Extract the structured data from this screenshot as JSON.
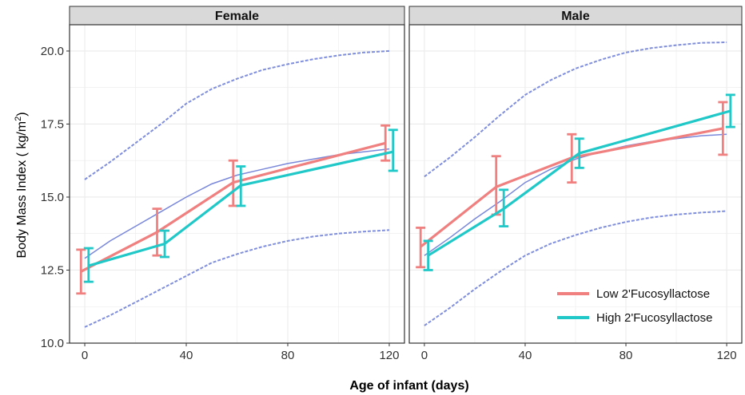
{
  "figure": {
    "xlabel": "Age of infant (days)",
    "ylabel_main": "Body Mass Index ( kg/m",
    "ylabel_sup": "2",
    "ylabel_end": ")",
    "legend": [
      {
        "label": "Low 2'Fucosyllactose",
        "color": "#F08080"
      },
      {
        "label": "High 2'Fucosyllactose",
        "color": "#20C8C8"
      }
    ]
  },
  "chart_data": {
    "type": "line",
    "xlim": [
      -6,
      126
    ],
    "ylim": [
      10,
      20.9
    ],
    "x_ticks": [
      0,
      40,
      80,
      120
    ],
    "y_ticks": [
      10,
      12.5,
      15,
      17.5,
      20
    ],
    "y_tick_labels": [
      "10.0",
      "12.5",
      "15.0",
      "17.5",
      "20.0"
    ],
    "grid": true,
    "colors": {
      "low": "#F08080",
      "high": "#20C8C8",
      "reference": "#6A7BD6",
      "panel_border": "#333333",
      "strip_fill": "#D9D9D9",
      "grid": "#EBEBEB"
    },
    "panels": [
      {
        "name": "Female",
        "x": [
          0,
          30,
          60,
          120
        ],
        "series": [
          {
            "name": "Low 2'Fucosyllactose",
            "values": [
              12.45,
              13.8,
              15.5,
              16.85
            ],
            "lower": [
              11.7,
              13.0,
              14.7,
              16.25
            ],
            "upper": [
              13.2,
              14.6,
              16.25,
              17.45
            ]
          },
          {
            "name": "High 2'Fucosyllactose",
            "values": [
              12.65,
              13.4,
              15.4,
              16.55
            ],
            "lower": [
              12.1,
              12.95,
              14.7,
              15.9
            ],
            "upper": [
              13.25,
              13.85,
              16.05,
              17.3
            ]
          }
        ],
        "reference_x": [
          0,
          10,
          20,
          30,
          40,
          50,
          60,
          70,
          80,
          90,
          100,
          110,
          120
        ],
        "reference_median": [
          12.9,
          13.5,
          14.0,
          14.5,
          15.0,
          15.45,
          15.75,
          15.95,
          16.15,
          16.3,
          16.45,
          16.55,
          16.65
        ],
        "reference_upper": [
          15.6,
          16.2,
          16.85,
          17.5,
          18.2,
          18.7,
          19.05,
          19.35,
          19.55,
          19.72,
          19.85,
          19.95,
          20.0
        ],
        "reference_lower": [
          10.55,
          10.95,
          11.4,
          11.85,
          12.3,
          12.75,
          13.05,
          13.3,
          13.5,
          13.65,
          13.75,
          13.82,
          13.87
        ]
      },
      {
        "name": "Male",
        "x": [
          0,
          30,
          60,
          120
        ],
        "series": [
          {
            "name": "Low 2'Fucosyllactose",
            "values": [
              13.3,
              15.35,
              16.35,
              17.35
            ],
            "lower": [
              12.6,
              14.4,
              15.5,
              16.45
            ],
            "upper": [
              13.95,
              16.4,
              17.15,
              18.25
            ]
          },
          {
            "name": "High 2'Fucosyllactose",
            "values": [
              13.0,
              14.6,
              16.5,
              17.95
            ],
            "lower": [
              12.5,
              14.0,
              16.0,
              17.4
            ],
            "upper": [
              13.5,
              15.25,
              17.0,
              18.5
            ]
          }
        ],
        "reference_x": [
          0,
          10,
          20,
          30,
          40,
          50,
          60,
          70,
          80,
          90,
          100,
          110,
          120
        ],
        "reference_median": [
          13.0,
          13.6,
          14.25,
          14.85,
          15.5,
          15.95,
          16.3,
          16.55,
          16.75,
          16.9,
          17.0,
          17.1,
          17.15
        ],
        "reference_upper": [
          15.7,
          16.35,
          17.05,
          17.8,
          18.5,
          19.0,
          19.4,
          19.7,
          19.95,
          20.1,
          20.2,
          20.28,
          20.3
        ],
        "reference_lower": [
          10.6,
          11.2,
          11.85,
          12.45,
          13.0,
          13.4,
          13.7,
          13.95,
          14.15,
          14.3,
          14.4,
          14.47,
          14.52
        ]
      }
    ]
  }
}
